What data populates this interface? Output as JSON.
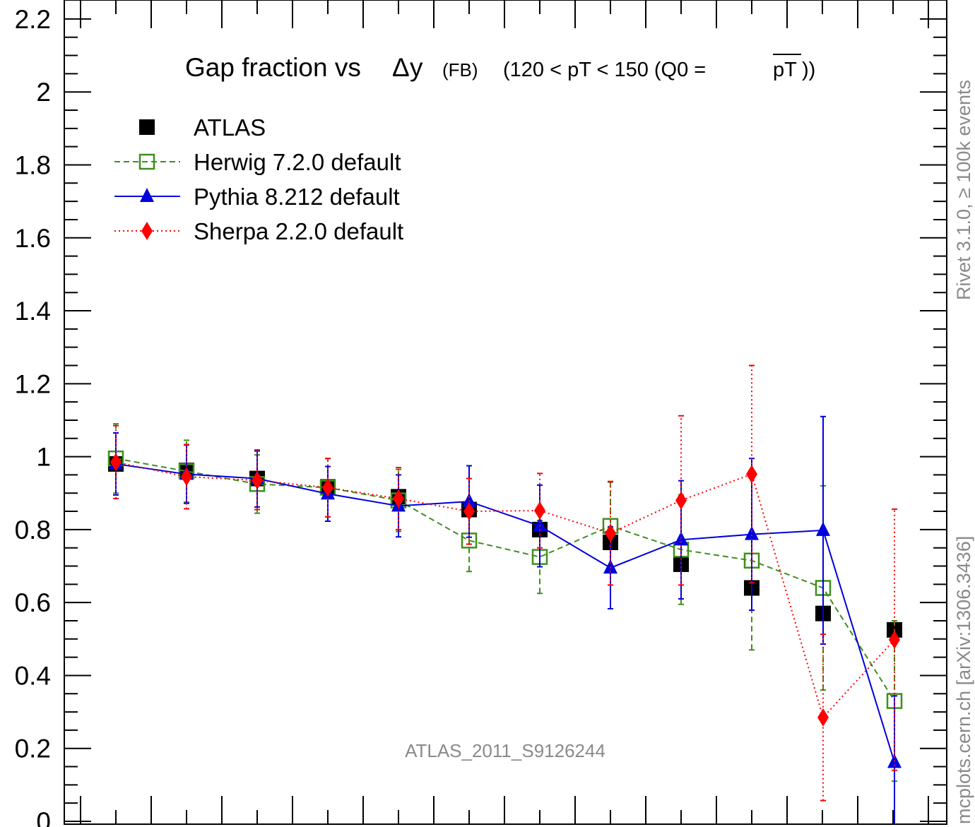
{
  "chart_data": {
    "type": "scatter",
    "title_main": "Gap fraction vs",
    "title_delta": "Δ",
    "title_y": "y",
    "title_fb": "(FB)",
    "title_cut_a": "(120 < pT < 150 (Q0 =",
    "title_cut_bar": "pT",
    "title_cut_b": "))",
    "ylim": [
      0,
      2.2
    ],
    "y_ticks": [
      "0",
      "0.2",
      "0.4",
      "0.6",
      "0.8",
      "1",
      "1.2",
      "1.4",
      "1.6",
      "1.8",
      "2",
      "2.2"
    ],
    "watermark": "ATLAS_2011_S9126244",
    "side_label_top": "Rivet 3.1.0, ≥ 100k events",
    "side_label_bottom": "mcplots.cern.ch [arXiv:1306.3436]",
    "legend_position": "top-left",
    "series": [
      {
        "name": "ATLAS",
        "color": "#000000",
        "style": "none",
        "marker": "square-filled",
        "values": [
          0.98,
          0.962,
          0.94,
          0.917,
          0.89,
          0.855,
          0.8,
          0.765,
          0.705,
          0.64,
          0.57,
          0.525
        ],
        "err": [
          0,
          0,
          0,
          0,
          0,
          0,
          0,
          0,
          0,
          0,
          0,
          0
        ]
      },
      {
        "name": "Herwig 7.2.0 default",
        "color": "#3d8f1d",
        "style": "dashed",
        "marker": "square-open",
        "values": [
          0.995,
          0.96,
          0.925,
          0.915,
          0.88,
          0.77,
          0.725,
          0.81,
          0.745,
          0.715,
          0.64,
          0.33
        ],
        "err": [
          0.095,
          0.085,
          0.08,
          0.08,
          0.085,
          0.085,
          0.1,
          0.12,
          0.15,
          0.245,
          0.28,
          0.22
        ]
      },
      {
        "name": "Pythia 8.212 default",
        "color": "#0000dd",
        "style": "solid",
        "marker": "triangle",
        "values": [
          0.98,
          0.952,
          0.94,
          0.898,
          0.865,
          0.877,
          0.81,
          0.695,
          0.772,
          0.787,
          0.798,
          0.162
        ],
        "err": [
          0.085,
          0.08,
          0.078,
          0.075,
          0.085,
          0.098,
          0.112,
          0.112,
          0.162,
          0.208,
          0.312,
          0.182
        ]
      },
      {
        "name": "Sherpa 2.2.0 default",
        "color": "#ff0000",
        "style": "dotted",
        "marker": "diamond",
        "values": [
          0.985,
          0.945,
          0.935,
          0.915,
          0.885,
          0.85,
          0.852,
          0.79,
          0.88,
          0.952,
          0.285,
          0.498
        ],
        "err": [
          0.1,
          0.088,
          0.08,
          0.08,
          0.085,
          0.09,
          0.102,
          0.142,
          0.232,
          0.298,
          0.228,
          0.358
        ]
      }
    ]
  }
}
